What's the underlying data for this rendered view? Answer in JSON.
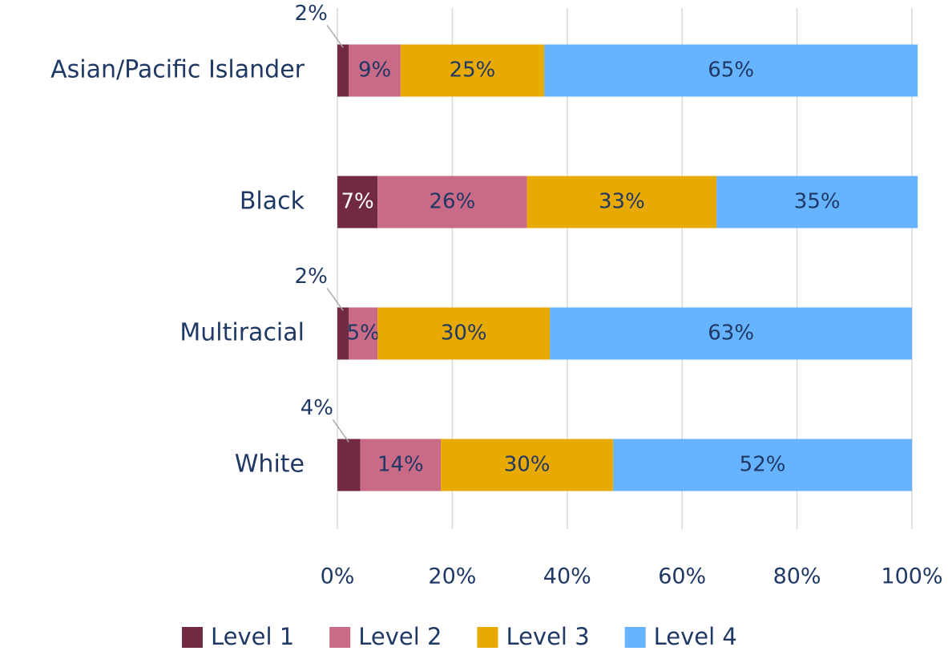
{
  "chart_data": {
    "type": "stacked-bar-horizontal",
    "categories": [
      "Asian/Pacific Islander",
      "Black",
      "Multiracial",
      "White"
    ],
    "series": [
      {
        "name": "Level 1",
        "color": "#722a43",
        "values": [
          2,
          7,
          2,
          4
        ],
        "value_labels": [
          "2%",
          "7%",
          "2%",
          "4%"
        ]
      },
      {
        "name": "Level 2",
        "color": "#c96a87",
        "values": [
          9,
          26,
          5,
          14
        ],
        "value_labels": [
          "9%",
          "26%",
          "5%",
          "14%"
        ]
      },
      {
        "name": "Level 3",
        "color": "#e8a900",
        "values": [
          25,
          33,
          30,
          30
        ],
        "value_labels": [
          "25%",
          "33%",
          "30%",
          "30%"
        ]
      },
      {
        "name": "Level 4",
        "color": "#66b3ff",
        "values": [
          65,
          35,
          63,
          52
        ],
        "value_labels": [
          "65%",
          "35%",
          "63%",
          "52%"
        ]
      }
    ],
    "xlim": [
      0,
      100
    ],
    "xticks": [
      {
        "value": 0,
        "label": "0%"
      },
      {
        "value": 20,
        "label": "20%"
      },
      {
        "value": 40,
        "label": "40%"
      },
      {
        "value": 60,
        "label": "60%"
      },
      {
        "value": 80,
        "label": "80%"
      },
      {
        "value": 100,
        "label": "100%"
      }
    ],
    "grid": true,
    "legend": "bottom"
  }
}
